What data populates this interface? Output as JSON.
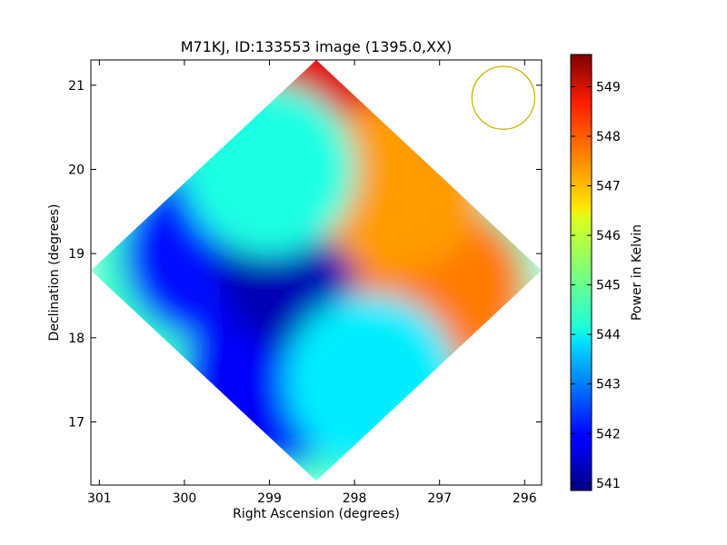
{
  "chart_data": {
    "type": "heatmap",
    "title": "M71KJ, ID:133553 image (1395.0,XX)",
    "xlabel": "Right Ascension (degrees)",
    "ylabel": "Declination (degrees)",
    "x_inverted": true,
    "xlim": [
      301.1,
      295.8
    ],
    "ylim": [
      16.25,
      21.3
    ],
    "xticks": [
      301,
      300,
      299,
      298,
      297,
      296
    ],
    "yticks": [
      17,
      18,
      19,
      20,
      21
    ],
    "colorbar": {
      "label": "Power in Kelvin",
      "colormap": "jet",
      "range": [
        540.85,
        549.65
      ],
      "ticks": [
        541,
        542,
        543,
        544,
        545,
        546,
        547,
        548,
        549
      ]
    },
    "map_region": {
      "shape": "diamond",
      "center": [
        298.45,
        18.8
      ],
      "vertices": [
        [
          298.45,
          21.3
        ],
        [
          295.8,
          18.8
        ],
        [
          298.45,
          16.3
        ],
        [
          301.1,
          18.8
        ]
      ]
    },
    "value_field_samples": [
      {
        "ra": 299.7,
        "dec": 19.0,
        "value": 542.1
      },
      {
        "ra": 299.0,
        "dec": 17.5,
        "value": 541.9
      },
      {
        "ra": 298.6,
        "dec": 18.85,
        "value": 541.3
      },
      {
        "ra": 298.1,
        "dec": 20.9,
        "value": 548.8
      },
      {
        "ra": 297.0,
        "dec": 18.6,
        "value": 547.5
      },
      {
        "ra": 297.5,
        "dec": 19.8,
        "value": 547.2
      },
      {
        "ra": 299.0,
        "dec": 20.0,
        "value": 544.4
      },
      {
        "ra": 297.8,
        "dec": 17.5,
        "value": 544.0
      }
    ],
    "beam_marker": {
      "center": [
        296.25,
        20.85
      ],
      "radius_deg": 0.37,
      "color": "#c8b400"
    }
  }
}
